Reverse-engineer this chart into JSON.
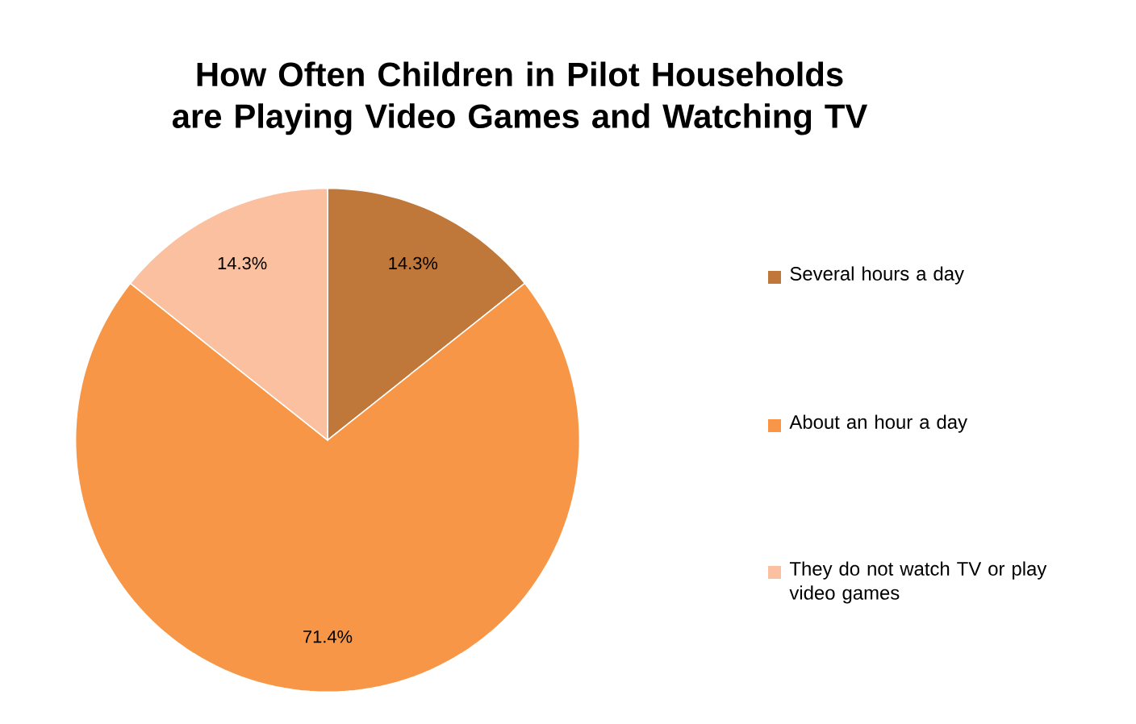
{
  "chart_data": {
    "type": "pie",
    "title": "How Often Children in Pilot Households are Playing Video Games and Watching TV",
    "categories": [
      "Several hours a day",
      "About an hour a day",
      "They do not watch TV or play video games"
    ],
    "values": [
      14.3,
      71.4,
      14.3
    ],
    "colors": [
      "#c0773a",
      "#f79646",
      "#fac09f"
    ],
    "value_labels": [
      "14.3%",
      "71.4%",
      "14.3%"
    ],
    "legend": "right"
  }
}
